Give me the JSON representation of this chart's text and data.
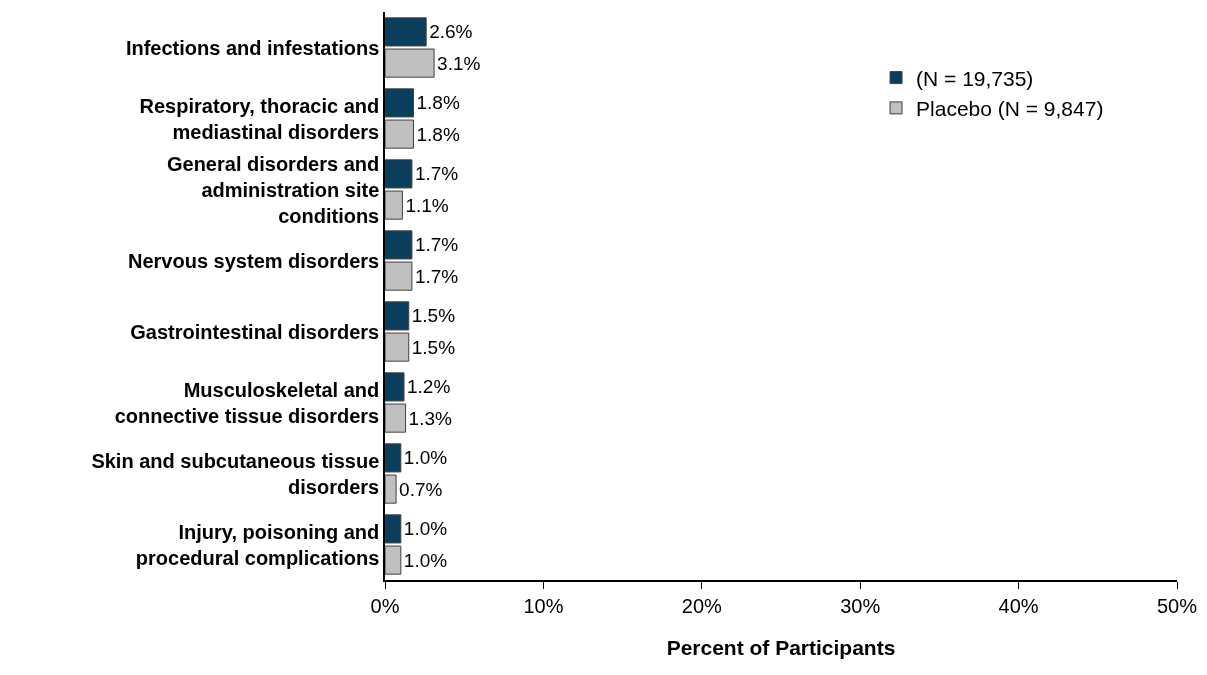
{
  "chart_data": {
    "type": "bar",
    "orientation": "horizontal",
    "xlabel": "Percent of Participants",
    "categories": [
      "Infections and infestations",
      "Respiratory, thoracic and mediastinal disorders",
      "General disorders and administration site conditions",
      "Nervous system disorders",
      "Gastrointestinal disorders",
      "Musculoskeletal and connective tissue disorders",
      "Skin and subcutaneous tissue disorders",
      "Injury, poisoning and procedural complications"
    ],
    "series": [
      {
        "name": "(N = 19,735)",
        "color": "#0b3d5c",
        "values": [
          2.6,
          1.8,
          1.7,
          1.7,
          1.5,
          1.2,
          1.0,
          1.0
        ],
        "value_labels": [
          "2.6%",
          "1.8%",
          "1.7%",
          "1.7%",
          "1.5%",
          "1.2%",
          "1.0%",
          "1.0%"
        ]
      },
      {
        "name": "Placebo (N = 9,847)",
        "color": "#c0c0c0",
        "values": [
          3.1,
          1.8,
          1.1,
          1.7,
          1.5,
          1.3,
          0.7,
          1.0
        ],
        "value_labels": [
          "3.1%",
          "1.8%",
          "1.1%",
          "1.7%",
          "1.5%",
          "1.3%",
          "0.7%",
          "1.0%"
        ]
      }
    ],
    "xlim": [
      0,
      50
    ],
    "xticks": [
      {
        "value": 0,
        "label": "0%"
      },
      {
        "value": 10,
        "label": "10%"
      },
      {
        "value": 20,
        "label": "20%"
      },
      {
        "value": 30,
        "label": "30%"
      },
      {
        "value": 40,
        "label": "40%"
      },
      {
        "value": 50,
        "label": "50%"
      }
    ],
    "grid": false,
    "legend": "top right"
  }
}
